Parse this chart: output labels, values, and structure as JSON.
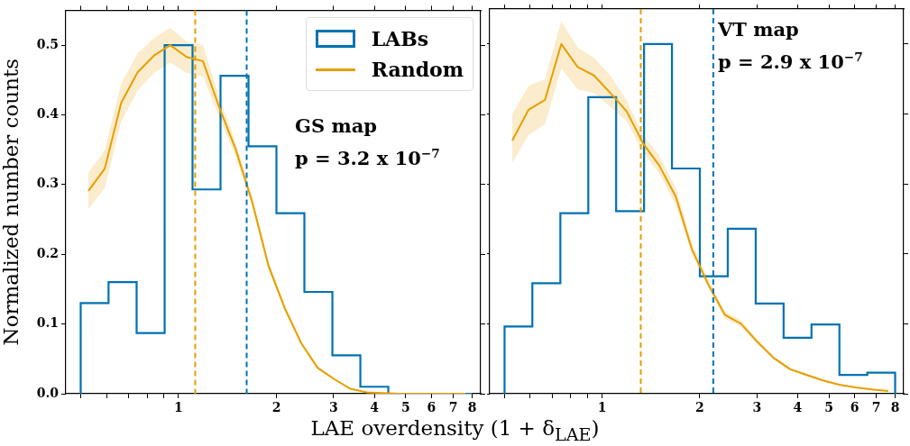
{
  "chart_data": [
    {
      "type": "histogram",
      "xlabel": "LAE overdensity (1 + δ$_{LAE}$)",
      "ylabel": "Normalized number counts",
      "log": "x",
      "legend": "top right",
      "bins": [
        0.5,
        0.609,
        0.743,
        0.906,
        1.104,
        1.346,
        1.641,
        2.0,
        2.438,
        2.973,
        3.624,
        4.418,
        5.386,
        6.566,
        8.0
      ],
      "series": [
        {
          "type": "histogram",
          "name": "LABs",
          "color": "#0072b2",
          "values": [
            0.13,
            0.16,
            0.087,
            0.5,
            0.293,
            0.456,
            0.355,
            0.259,
            0.146,
            0.055,
            0.01,
            0,
            0,
            0
          ]
        },
        {
          "type": "line",
          "name": "Random",
          "color": "#e69f00",
          "x": [
            0.528,
            0.593,
            0.666,
            0.748,
            0.84,
            0.943,
            1.059,
            1.189,
            1.336,
            1.5,
            1.685,
            1.892,
            2.125,
            2.387,
            2.68,
            3.01,
            3.38,
            3.8,
            4.26,
            4.79,
            5.38,
            6.04,
            6.78,
            7.62
          ],
          "values": [
            0.291,
            0.323,
            0.417,
            0.461,
            0.485,
            0.5,
            0.483,
            0.477,
            0.41,
            0.35,
            0.275,
            0.183,
            0.122,
            0.072,
            0.037,
            0.021,
            0.007,
            0.002,
            0.001,
            0,
            0,
            0,
            0,
            0
          ],
          "lower": [
            0.265,
            0.295,
            0.39,
            0.435,
            0.46,
            0.475,
            0.46,
            0.455,
            0.395,
            0.34,
            0.268,
            0.177,
            0.118,
            0.069,
            0.035,
            0.02,
            0.006,
            0.001,
            0,
            0,
            0,
            0,
            0,
            0
          ],
          "upper": [
            0.317,
            0.35,
            0.445,
            0.488,
            0.51,
            0.525,
            0.505,
            0.5,
            0.425,
            0.36,
            0.283,
            0.19,
            0.127,
            0.075,
            0.04,
            0.023,
            0.008,
            0.003,
            0.002,
            0.001,
            0.001,
            0.001,
            0.001,
            0.001
          ]
        }
      ],
      "ref_lines": [
        {
          "axis": "x",
          "value": 1.125,
          "color": "#e69f00",
          "line_style": "dashed"
        },
        {
          "axis": "x",
          "value": 1.62,
          "color": "#0072b2",
          "line_style": "dashed"
        }
      ],
      "annotations": [
        "GS map",
        "p = 3.2 x 10$^{−7}$"
      ],
      "xlim": [
        0.45,
        8.5
      ],
      "ylim": [
        0,
        0.55
      ],
      "xticks": [
        {
          "value": 0.5,
          "label": null
        },
        {
          "value": 0.6,
          "label": null
        },
        {
          "value": 0.7,
          "label": null
        },
        {
          "value": 0.8,
          "label": null
        },
        {
          "value": 0.9,
          "label": null
        },
        1,
        2,
        3,
        4,
        5,
        6,
        7,
        8
      ],
      "yticks": [
        {
          "value": 0,
          "label": "0.0"
        },
        0.1,
        0.2,
        0.3,
        0.4,
        0.5
      ]
    },
    {
      "type": "histogram",
      "log": "x",
      "tick_labels": "x",
      "bins": [
        0.5,
        0.609,
        0.743,
        0.906,
        1.104,
        1.346,
        1.641,
        2.0,
        2.438,
        2.973,
        3.624,
        4.418,
        5.386,
        6.566,
        8.0
      ],
      "series": [
        {
          "type": "histogram",
          "color": "#0072b2",
          "values": [
            0.096,
            0.158,
            0.258,
            0.424,
            0.261,
            0.5,
            0.322,
            0.168,
            0.236,
            0.129,
            0.08,
            0.099,
            0.027,
            0.03
          ]
        },
        {
          "type": "line",
          "color": "#e69f00",
          "x": [
            0.528,
            0.593,
            0.666,
            0.748,
            0.84,
            0.943,
            1.059,
            1.189,
            1.336,
            1.5,
            1.685,
            1.892,
            2.125,
            2.387,
            2.68,
            3.01,
            3.38,
            3.8,
            4.26,
            4.79,
            5.38,
            6.04,
            6.78,
            7.62
          ],
          "values": [
            0.362,
            0.406,
            0.42,
            0.5,
            0.467,
            0.455,
            0.43,
            0.404,
            0.358,
            0.326,
            0.282,
            0.206,
            0.156,
            0.113,
            0.1,
            0.074,
            0.051,
            0.035,
            0.027,
            0.019,
            0.013,
            0.009,
            0.006,
            0.004
          ],
          "lower": [
            0.33,
            0.37,
            0.385,
            0.465,
            0.435,
            0.43,
            0.41,
            0.39,
            0.345,
            0.315,
            0.27,
            0.2,
            0.15,
            0.108,
            0.096,
            0.071,
            0.049,
            0.033,
            0.025,
            0.018,
            0.012,
            0.008,
            0.005,
            0.003
          ],
          "upper": [
            0.4,
            0.44,
            0.45,
            0.533,
            0.495,
            0.48,
            0.455,
            0.42,
            0.37,
            0.34,
            0.295,
            0.215,
            0.163,
            0.118,
            0.105,
            0.078,
            0.054,
            0.037,
            0.029,
            0.021,
            0.014,
            0.01,
            0.007,
            0.005
          ]
        }
      ],
      "ref_lines": [
        {
          "axis": "x",
          "value": 1.315,
          "color": "#e69f00",
          "line_style": "dashed"
        },
        {
          "axis": "x",
          "value": 2.2,
          "color": "#0072b2",
          "line_style": "dashed"
        }
      ],
      "annotations": [
        "VT map",
        "p = 2.9 x 10$^{−7}$"
      ],
      "xlim": [
        0.45,
        8.5
      ],
      "ylim": [
        0,
        0.55
      ],
      "xticks": [
        {
          "value": 0.5,
          "label": null
        },
        {
          "value": 0.6,
          "label": null
        },
        {
          "value": 0.7,
          "label": null
        },
        {
          "value": 0.8,
          "label": null
        },
        {
          "value": 0.9,
          "label": null
        },
        1,
        2,
        3,
        4,
        5,
        6,
        7,
        8
      ],
      "yticks": [
        0,
        0.1,
        0.2,
        0.3,
        0.4,
        0.5
      ]
    }
  ]
}
